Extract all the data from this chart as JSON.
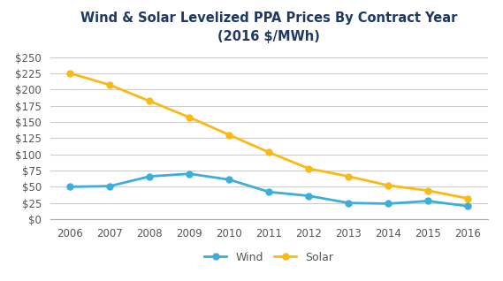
{
  "title_line1": "Wind & Solar Levelized PPA Prices By Contract Year",
  "title_line2": "(2016 $/MWh)",
  "years": [
    2006,
    2007,
    2008,
    2009,
    2010,
    2011,
    2012,
    2013,
    2014,
    2015,
    2016
  ],
  "wind": [
    50,
    51,
    66,
    70,
    61,
    42,
    36,
    25,
    24,
    28,
    20
  ],
  "solar": [
    225,
    207,
    182,
    157,
    130,
    103,
    78,
    66,
    52,
    44,
    32
  ],
  "wind_color": "#3BAEDC",
  "solar_color": "#FDB913",
  "wind_label": "Wind",
  "solar_label": "Solar",
  "ylim": [
    0,
    260
  ],
  "yticks": [
    0,
    25,
    50,
    75,
    100,
    125,
    150,
    175,
    200,
    225,
    250
  ],
  "background_color": "#FFFFFF",
  "title_color": "#1F3864",
  "grid_color": "#CCCCCC",
  "title_fontsize": 10.5,
  "axis_fontsize": 8.5,
  "legend_fontsize": 9,
  "line_width": 2.0,
  "marker": "o",
  "marker_size": 5
}
